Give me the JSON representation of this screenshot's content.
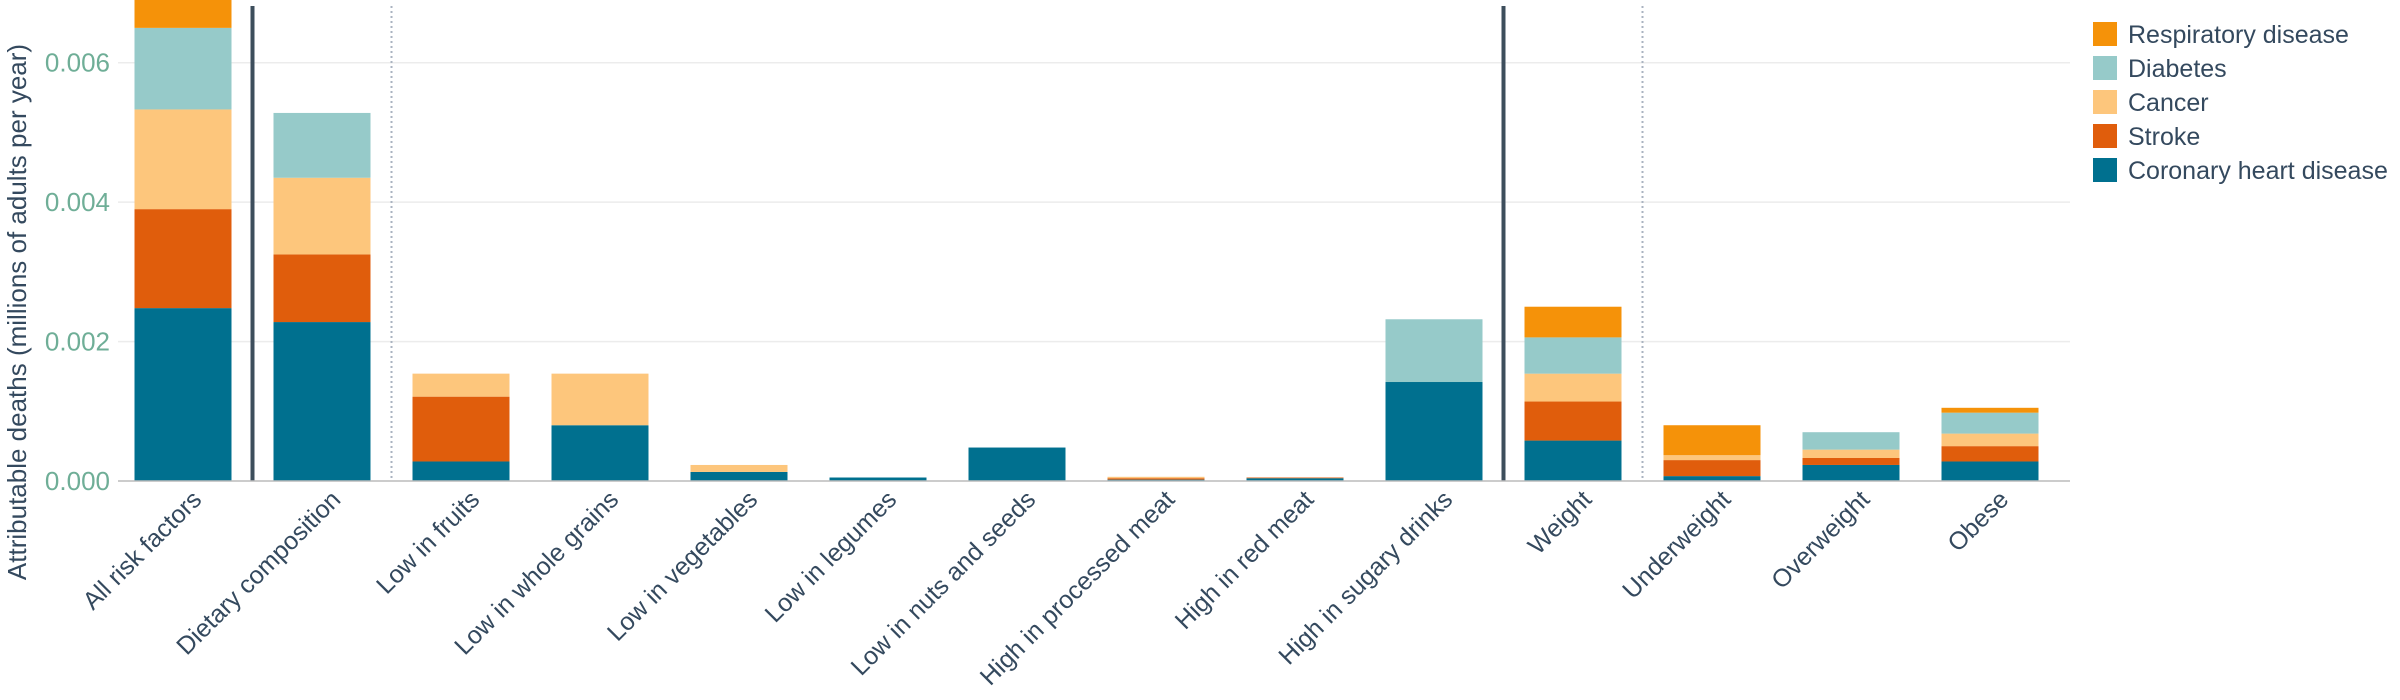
{
  "chart_data": {
    "type": "bar",
    "stacked": true,
    "title": "",
    "xlabel": "",
    "ylabel": "Attributable deaths (millions of adults per year)",
    "ylim": [
      0,
      0.0069
    ],
    "yticks": [
      "0.000",
      "0.002",
      "0.004",
      "0.006"
    ],
    "ytick_values": [
      0,
      0.002,
      0.004,
      0.006
    ],
    "grid": true,
    "legend_position": "top-right",
    "categories": [
      "All risk factors",
      "Dietary composition",
      "Low in fruits",
      "Low in whole grains",
      "Low in vegetables",
      "Low in legumes",
      "Low in nuts and seeds",
      "High in processed meat",
      "High in red meat",
      "High in sugary drinks",
      "Weight",
      "Underweight",
      "Overweight",
      "Obese"
    ],
    "group_separators": [
      {
        "after_index": 0,
        "style": "solid"
      },
      {
        "after_index": 1,
        "style": "dotted"
      },
      {
        "after_index": 9,
        "style": "solid"
      },
      {
        "after_index": 10,
        "style": "dotted"
      }
    ],
    "series": [
      {
        "name": "Coronary heart disease",
        "color": "#00708f",
        "values": [
          0.00248,
          0.00228,
          0.00028,
          0.0008,
          0.00013,
          5e-05,
          0.00048,
          2e-05,
          4e-05,
          0.00142,
          0.00058,
          7e-05,
          0.00023,
          0.00028
        ]
      },
      {
        "name": "Stroke",
        "color": "#e05d0c",
        "values": [
          0.00142,
          0.00097,
          0.00093,
          0.0,
          0.0,
          0.0,
          0.0,
          2e-05,
          1e-05,
          0.0,
          0.00056,
          0.00023,
          0.0001,
          0.00022
        ]
      },
      {
        "name": "Cancer",
        "color": "#fdc67c",
        "values": [
          0.00143,
          0.0011,
          0.00033,
          0.00074,
          0.0001,
          0.0,
          0.0,
          2e-05,
          0.0,
          0.0,
          0.0004,
          7e-05,
          0.00012,
          0.00018
        ]
      },
      {
        "name": "Diabetes",
        "color": "#96cac9",
        "values": [
          0.00117,
          0.00093,
          0.0,
          0.0,
          0.0,
          0.0,
          0.0,
          0.0,
          0.0,
          0.0009,
          0.00052,
          0.0,
          0.00025,
          0.0003
        ]
      },
      {
        "name": "Respiratory disease",
        "color": "#f59209",
        "values": [
          0.00046,
          0.0,
          0.0,
          0.0,
          0.0,
          0.0,
          0.0,
          0.0,
          0.0,
          0.0,
          0.00044,
          0.00043,
          0.0,
          7e-05
        ]
      }
    ]
  }
}
